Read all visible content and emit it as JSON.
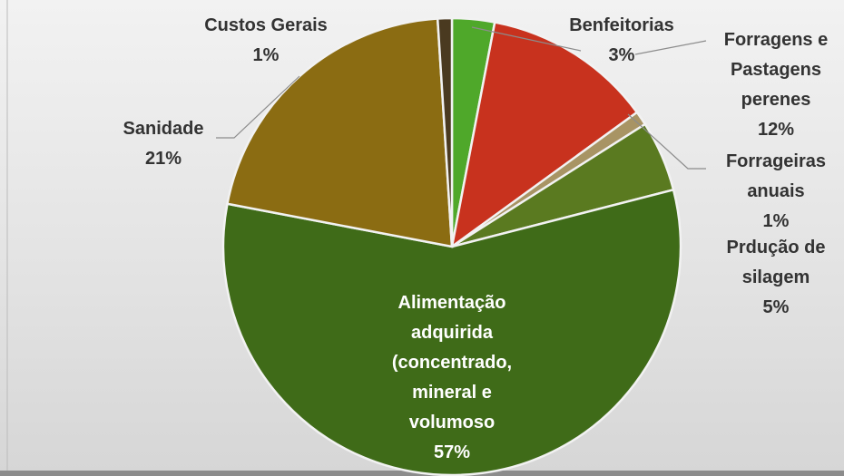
{
  "chart_data": {
    "type": "pie",
    "categories": [
      "Benfeitorias",
      "Forragens e Pastagens perenes",
      "Forrageiras anuais",
      "Prdução de silagem",
      "Alimentação adquirida (concentrado, mineral e volumoso",
      "Sanidade",
      "Custos Gerais"
    ],
    "values": [
      3,
      12,
      1,
      5,
      57,
      21,
      1
    ],
    "value_labels": [
      "3%",
      "12%",
      "1%",
      "5%",
      "57%",
      "21%",
      "1%"
    ],
    "colors": [
      "#4fa82a",
      "#c8321e",
      "#a89464",
      "#5a7a20",
      "#3f6b18",
      "#8b6c12",
      "#4a3a20"
    ]
  }
}
